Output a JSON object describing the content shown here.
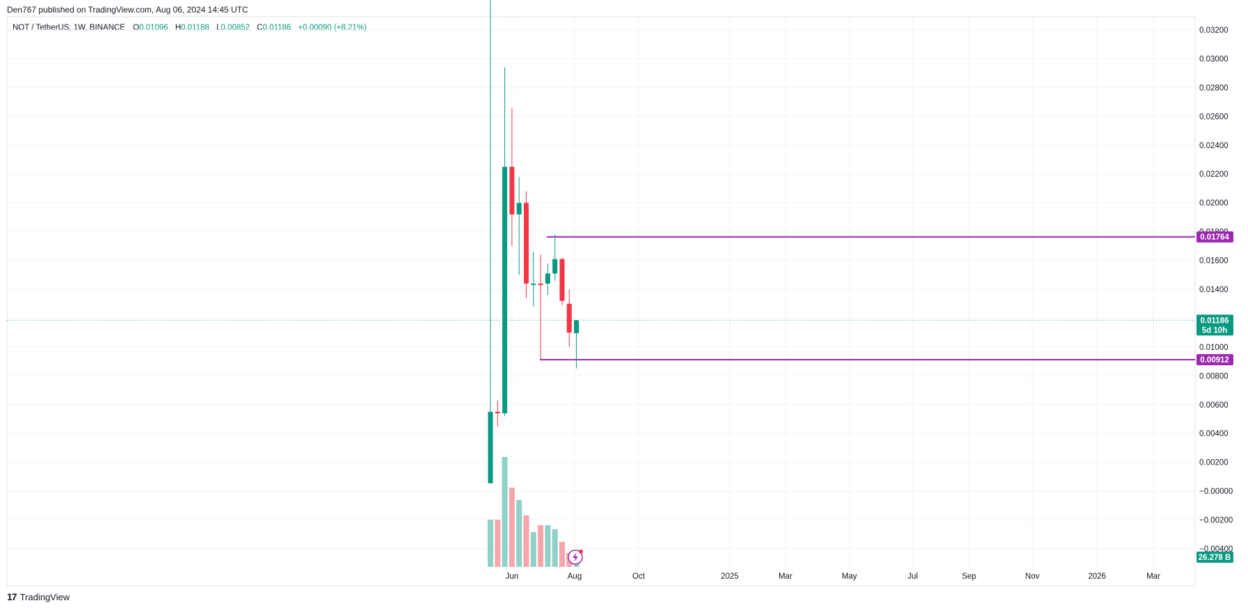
{
  "header": {
    "publisher_line": "Den767 published on TradingView.com, Aug 06, 2024 14:45 UTC"
  },
  "legend": {
    "symbol": "NOT / TetherUS, 1W, BINANCE",
    "open_label": "O",
    "open": "0.01096",
    "high_label": "H",
    "high": "0.01188",
    "low_label": "L",
    "low": "0.00852",
    "close_label": "C",
    "close": "0.01186",
    "change": "+0.00090 (+8.21%)"
  },
  "price_axis": {
    "ticks": [
      "0.03200",
      "0.03000",
      "0.02800",
      "0.02600",
      "0.02400",
      "0.02200",
      "0.02000",
      "0.01800",
      "0.01600",
      "0.01400",
      "0.01200",
      "0.01000",
      "0.00800",
      "0.00600",
      "0.00400",
      "0.00200",
      "−0.00000",
      "−0.00200",
      "−0.00400"
    ],
    "tick_values": [
      0.032,
      0.03,
      0.028,
      0.026,
      0.024,
      0.022,
      0.02,
      0.018,
      0.016,
      0.014,
      0.012,
      0.01,
      0.008,
      0.006,
      0.004,
      0.002,
      0.0,
      -0.002,
      -0.004
    ]
  },
  "time_axis": {
    "labels": [
      "Jun",
      "Aug",
      "Oct",
      "2025",
      "Mar",
      "May",
      "Jul",
      "Sep",
      "Nov",
      "2026",
      "Mar"
    ]
  },
  "tags": {
    "resistance": "0.01764",
    "current_price": "0.01186",
    "countdown": "5d 10h",
    "support": "0.00912",
    "volume": "26.278 B"
  },
  "colors": {
    "up": "#089981",
    "down": "#f23645",
    "up_volume": "#8fd0c8",
    "down_volume": "#f6a5aa",
    "level_line": "#9c27b0",
    "grid": "#f0f3fa"
  },
  "brand": {
    "name": "TradingView"
  },
  "chart_data": {
    "type": "candlestick",
    "interval": "1W",
    "symbol": "NOT / TetherUS",
    "exchange": "BINANCE",
    "ylim": [
      -0.004,
      0.032
    ],
    "grid": true,
    "candles": [
      {
        "o": 0.00055,
        "h": 0.0354,
        "l": 0.00055,
        "c": 0.0055
      },
      {
        "o": 0.0055,
        "h": 0.0063,
        "l": 0.0045,
        "c": 0.0054
      },
      {
        "o": 0.0054,
        "h": 0.0294,
        "l": 0.0052,
        "c": 0.0225
      },
      {
        "o": 0.0225,
        "h": 0.0266,
        "l": 0.017,
        "c": 0.0192
      },
      {
        "o": 0.0192,
        "h": 0.0218,
        "l": 0.015,
        "c": 0.02
      },
      {
        "o": 0.02,
        "h": 0.0208,
        "l": 0.0134,
        "c": 0.0144
      },
      {
        "o": 0.0144,
        "h": 0.0166,
        "l": 0.0128,
        "c": 0.0144
      },
      {
        "o": 0.0144,
        "h": 0.0164,
        "l": 0.0091,
        "c": 0.0143
      },
      {
        "o": 0.0144,
        "h": 0.0158,
        "l": 0.0136,
        "c": 0.0151
      },
      {
        "o": 0.0151,
        "h": 0.0178,
        "l": 0.0146,
        "c": 0.0161
      },
      {
        "o": 0.0161,
        "h": 0.0162,
        "l": 0.0129,
        "c": 0.0132
      },
      {
        "o": 0.013,
        "h": 0.014,
        "l": 0.01,
        "c": 0.011
      },
      {
        "o": 0.01096,
        "h": 0.01188,
        "l": 0.00852,
        "c": 0.01186
      }
    ],
    "volume_relative": [
      0.34,
      0.34,
      0.79,
      0.57,
      0.48,
      0.37,
      0.25,
      0.3,
      0.3,
      0.27,
      0.18,
      0.1,
      0.12
    ],
    "horizontal_levels": [
      0.01764,
      0.00912
    ],
    "current_price": 0.01186
  }
}
